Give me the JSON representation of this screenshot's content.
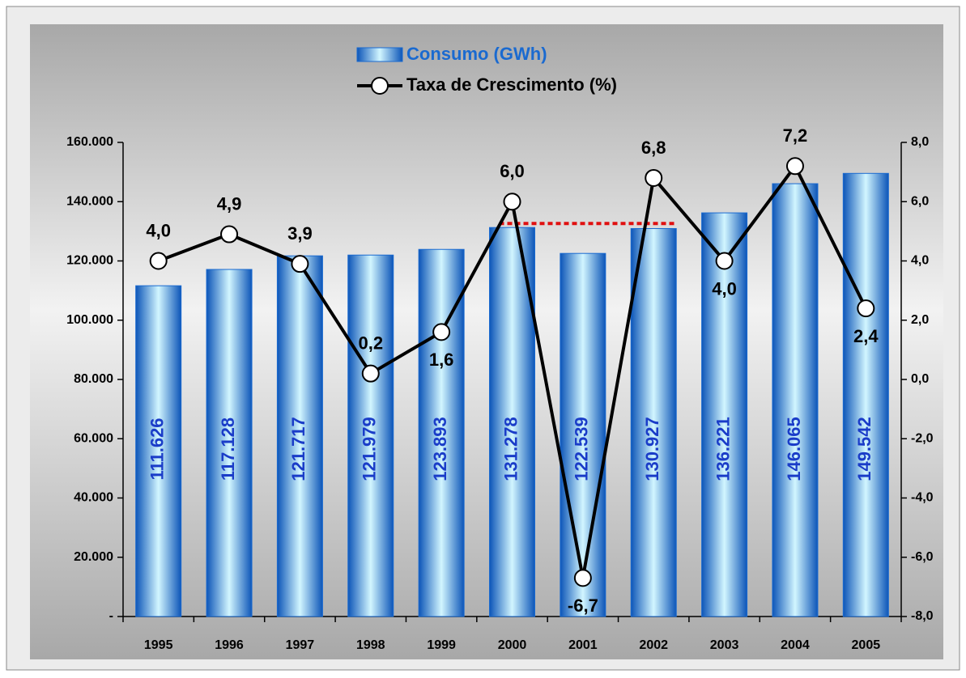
{
  "chart_data": {
    "type": "bar-line",
    "categories": [
      "1995",
      "1996",
      "1997",
      "1998",
      "1999",
      "2000",
      "2001",
      "2002",
      "2003",
      "2004",
      "2005"
    ],
    "series": [
      {
        "name": "Consumo (GWh)",
        "type": "bar",
        "color": "#1a6ad0",
        "values": [
          111626,
          117128,
          121717,
          121979,
          123893,
          131278,
          122539,
          130927,
          136221,
          146065,
          149542
        ],
        "value_labels": [
          "111.626",
          "117.128",
          "121.717",
          "121.979",
          "123.893",
          "131.278",
          "122.539",
          "130.927",
          "136.221",
          "146.065",
          "149.542"
        ]
      },
      {
        "name": "Taxa de Crescimento (%)",
        "type": "line",
        "axis": "y2",
        "color": "#000000",
        "values": [
          4.0,
          4.9,
          3.9,
          0.2,
          1.6,
          6.0,
          -6.7,
          6.8,
          4.0,
          7.2,
          2.4
        ],
        "value_labels": [
          "4,0",
          "4,9",
          "3,9",
          "0,2",
          "1,6",
          "6,0",
          "-6,7",
          "6,8",
          "4,0",
          "7,2",
          "2,4"
        ]
      }
    ],
    "ylim": [
      0,
      160000
    ],
    "yticks": [
      {
        "value": 0,
        "label": "-"
      },
      {
        "value": 20000,
        "label": "20.000"
      },
      {
        "value": 40000,
        "label": "40.000"
      },
      {
        "value": 60000,
        "label": "60.000"
      },
      {
        "value": 80000,
        "label": "80.000"
      },
      {
        "value": 100000,
        "label": "100.000"
      },
      {
        "value": 120000,
        "label": "120.000"
      },
      {
        "value": 140000,
        "label": "140.000"
      },
      {
        "value": 160000,
        "label": "160.000"
      }
    ],
    "y2lim": [
      -8,
      8
    ],
    "y2ticks": [
      {
        "value": -8,
        "label": "-8,0"
      },
      {
        "value": -6,
        "label": "-6,0"
      },
      {
        "value": -4,
        "label": "-4,0"
      },
      {
        "value": -2,
        "label": "-2,0"
      },
      {
        "value": 0,
        "label": "0,0"
      },
      {
        "value": 2,
        "label": "2,0"
      },
      {
        "value": 4,
        "label": "4,0"
      },
      {
        "value": 6,
        "label": "6,0"
      },
      {
        "value": 8,
        "label": "8,0"
      }
    ],
    "legend": "top"
  }
}
